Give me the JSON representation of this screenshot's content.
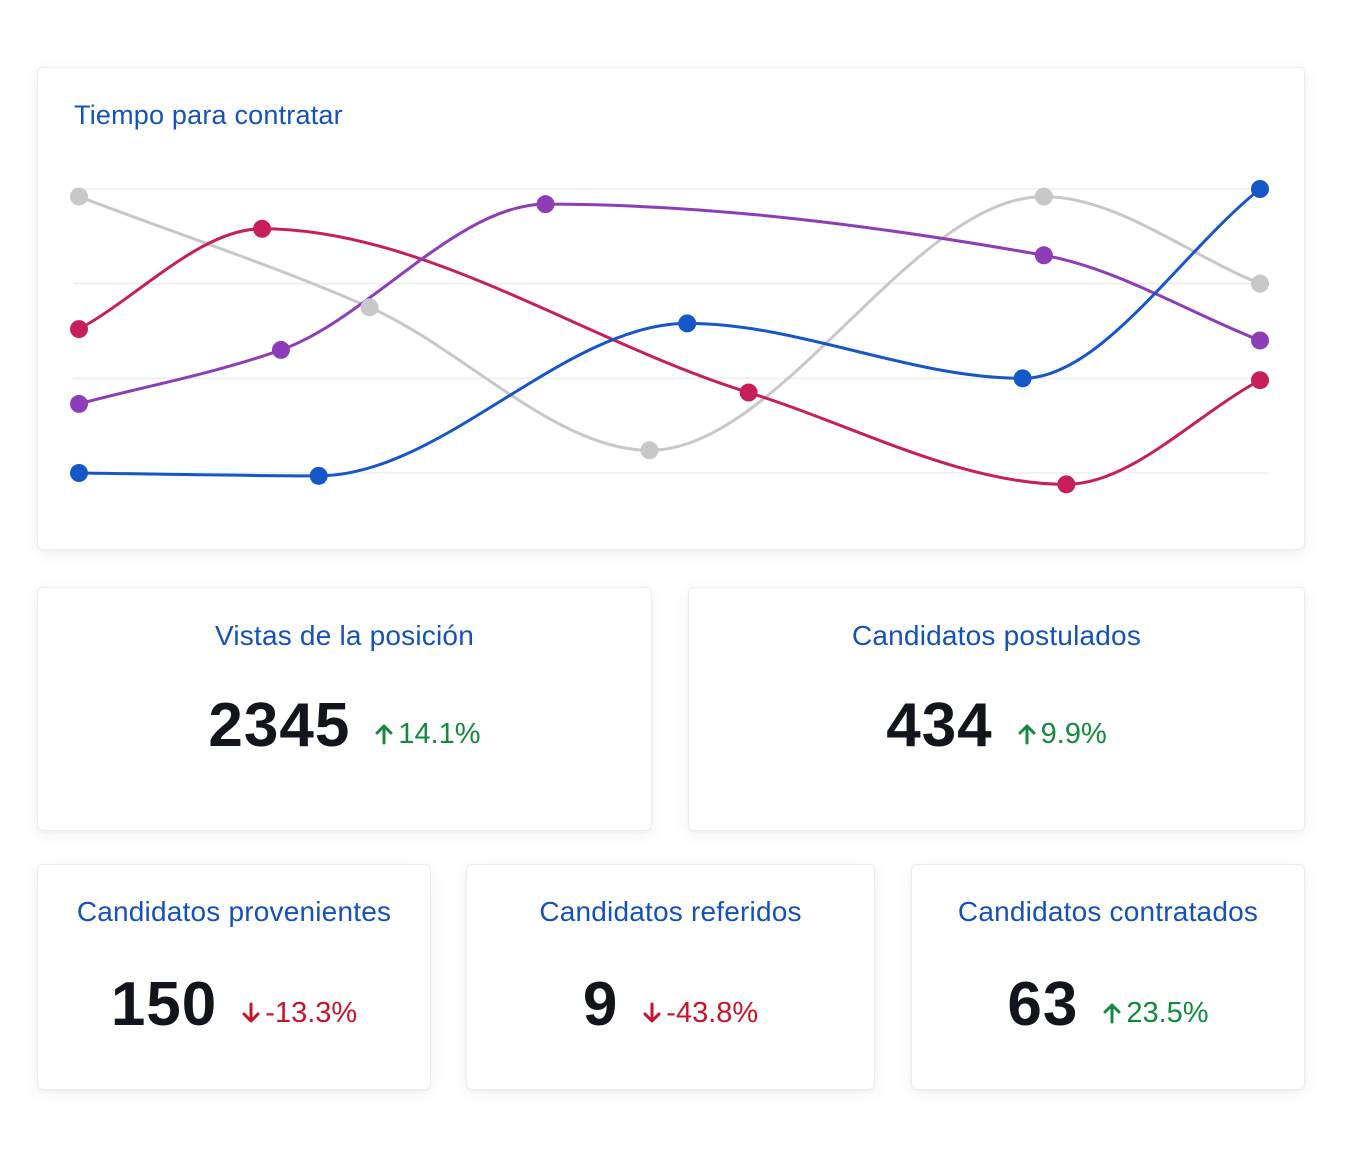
{
  "colors": {
    "title_blue": "#1452b8",
    "up_green": "#15893f",
    "down_red": "#c8142b",
    "value_dark": "#12151c"
  },
  "chart": {
    "title": "Tiempo para contratar"
  },
  "chart_data": {
    "type": "line",
    "title": "Tiempo para contratar",
    "xlabel": "",
    "ylabel": "",
    "xlim": [
      0,
      100
    ],
    "ylim": [
      0,
      3
    ],
    "grid": true,
    "gridlines": [
      0,
      1,
      2,
      3
    ],
    "smooth": true,
    "series": [
      {
        "color": "#c8c8c8",
        "points": [
          [
            0,
            2.92
          ],
          [
            24.6,
            1.75
          ],
          [
            48.3,
            0.24
          ],
          [
            81.7,
            2.92
          ],
          [
            100,
            2.0
          ]
        ]
      },
      {
        "color": "#c71f5b",
        "points": [
          [
            0,
            1.52
          ],
          [
            15.5,
            2.58
          ],
          [
            56.7,
            0.85
          ],
          [
            83.6,
            -0.12
          ],
          [
            100,
            0.98
          ]
        ]
      },
      {
        "color": "#8e3db8",
        "points": [
          [
            0,
            0.73
          ],
          [
            17.1,
            1.3
          ],
          [
            39.5,
            2.84
          ],
          [
            81.7,
            2.3
          ],
          [
            100,
            1.4
          ]
        ]
      },
      {
        "color": "#1657c8",
        "points": [
          [
            0,
            0.0
          ],
          [
            20.3,
            -0.03
          ],
          [
            51.5,
            1.58
          ],
          [
            79.9,
            1.0
          ],
          [
            100,
            3.0
          ]
        ]
      }
    ]
  },
  "stats": {
    "views": {
      "title": "Vistas de la posición",
      "value": "2345",
      "change": "14.1%",
      "trend": "up",
      "icon": "arrow-up-icon"
    },
    "applied": {
      "title": "Candidatos postulados",
      "value": "434",
      "change": "9.9%",
      "trend": "up",
      "icon": "arrow-up-icon"
    },
    "sourced": {
      "title": "Candidatos provenientes",
      "value": "150",
      "change": "-13.3%",
      "trend": "down",
      "icon": "arrow-down-icon"
    },
    "referred": {
      "title": "Candidatos referidos",
      "value": "9",
      "change": "-43.8%",
      "trend": "down",
      "icon": "arrow-down-icon"
    },
    "hired": {
      "title": "Candidatos contratados",
      "value": "63",
      "change": "23.5%",
      "trend": "up",
      "icon": "arrow-up-icon"
    }
  }
}
